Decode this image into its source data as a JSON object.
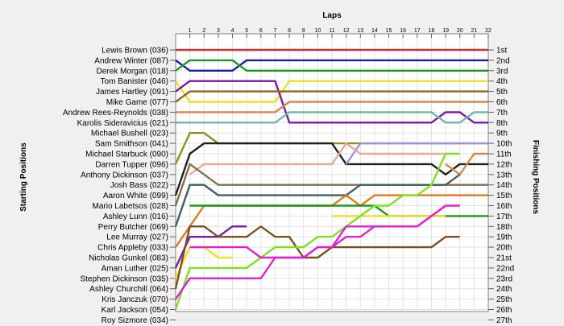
{
  "chart_data": {
    "type": "line",
    "title": "Laps",
    "xlabel": "Laps",
    "ylabel_left": "Starting Positions",
    "ylabel_right": "Finishing Positions",
    "laps": [
      "1",
      "2",
      "3",
      "4",
      "5",
      "6",
      "7",
      "8",
      "9",
      "10",
      "11",
      "12",
      "13",
      "14",
      "15",
      "16",
      "17",
      "18",
      "19",
      "20",
      "21",
      "22"
    ],
    "xlim": [
      0,
      22
    ],
    "ylim": [
      1,
      27
    ],
    "grid": true,
    "drivers": [
      "Lewis Brown (036)",
      "Andrew Winter (087)",
      "Derek Morgan (018)",
      "Tom Banister (046)",
      "James Hartley (091)",
      "Mike Game (077)",
      "Andrew Rees-Reynolds (038)",
      "Karolis Sideravicius (021)",
      "Michael Bushell (023)",
      "Sam Smithson (041)",
      "Michael Starbuck (090)",
      "Darren Tupper (096)",
      "Anthony Dickinson (037)",
      "Josh Bass (022)",
      "Aaron White (099)",
      "Mario Labetsos (028)",
      "Ashley Lunn (016)",
      "Perry Butcher (069)",
      "Lee Murray (027)",
      "Chris Appleby (033)",
      "Nicholas Gunkel (083)",
      "Aman Luther (025)",
      "Stephen Dickinson (035)",
      "Ashley Churchill (064)",
      "Kris Janczuk (070)",
      "Karl Jackson (054)",
      "Roy Sizmore (034)"
    ],
    "finishing_positions": [
      "1st",
      "2nd",
      "3rd",
      "4th",
      "5th",
      "6th",
      "7th",
      "8th",
      "9th",
      "10th",
      "11th",
      "12th",
      "13th",
      "14th",
      "15th",
      "16th",
      "17th",
      "18th",
      "19th",
      "20th",
      "21st",
      "22nd",
      "23rd",
      "24th",
      "25th",
      "26th",
      "27th"
    ],
    "series": [
      {
        "color": "#d03030",
        "values": [
          1,
          1,
          1,
          1,
          1,
          1,
          1,
          1,
          1,
          1,
          1,
          1,
          1,
          1,
          1,
          1,
          1,
          1,
          1,
          1,
          1,
          1,
          1
        ]
      },
      {
        "color": "#1a1ab0",
        "values": [
          2,
          3,
          3,
          3,
          3,
          2,
          2,
          2,
          2,
          2,
          2,
          2,
          2,
          2,
          2,
          2,
          2,
          2,
          2,
          2,
          2,
          2,
          2
        ]
      },
      {
        "color": "#1a9a1a",
        "values": [
          3,
          2,
          2,
          2,
          2,
          3,
          3,
          3,
          3,
          3,
          3,
          3,
          3,
          3,
          3,
          3,
          3,
          3,
          3,
          3,
          3,
          3,
          3
        ]
      },
      {
        "color": "#f0e020",
        "values": [
          4,
          6,
          6,
          6,
          6,
          6,
          6,
          6,
          4,
          4,
          4,
          4,
          4,
          4,
          4,
          4,
          4,
          4,
          4,
          4,
          4,
          4,
          4
        ]
      },
      {
        "color": "#7a1aa0",
        "values": [
          5,
          4,
          4,
          4,
          4,
          4,
          4,
          4,
          8,
          8,
          8,
          8,
          8,
          8,
          8,
          8,
          8,
          8,
          8,
          7,
          7,
          8,
          8
        ]
      },
      {
        "color": "#8a6a20",
        "values": [
          6,
          5,
          5,
          5,
          5,
          5,
          5,
          5,
          5,
          5,
          5,
          5,
          5,
          5,
          5,
          5,
          5,
          5,
          5,
          5,
          5,
          5,
          5
        ]
      },
      {
        "color": "#d08a50",
        "values": [
          7,
          7,
          7,
          7,
          7,
          7,
          7,
          7,
          6,
          6,
          6,
          6,
          6,
          6,
          6,
          6,
          6,
          6,
          6,
          6,
          6,
          6,
          6
        ]
      },
      {
        "color": "#70b8a8",
        "values": [
          8,
          8,
          8,
          8,
          8,
          8,
          8,
          8,
          7,
          7,
          7,
          7,
          7,
          7,
          7,
          7,
          7,
          7,
          7,
          8,
          8,
          7,
          7
        ]
      },
      {
        "color": "#909020",
        "values": [
          12,
          9,
          9,
          10,
          10,
          10,
          10,
          10,
          10,
          10,
          10,
          10,
          10,
          10,
          10,
          10,
          10,
          10,
          10,
          10,
          10,
          10,
          10
        ]
      },
      {
        "color": "#202020",
        "values": [
          15,
          11,
          10,
          10,
          10,
          10,
          10,
          10,
          10,
          10,
          10,
          10,
          12,
          12,
          12,
          12,
          12,
          12,
          12,
          13,
          12,
          12,
          12
        ]
      },
      {
        "color": "#a890d8",
        "values": [
          null,
          null,
          null,
          null,
          null,
          null,
          null,
          null,
          null,
          null,
          null,
          null,
          12,
          10,
          10,
          10,
          10,
          10,
          10,
          10,
          10,
          10,
          10
        ]
      },
      {
        "color": "#e8a898",
        "values": [
          null,
          13,
          12,
          12,
          12,
          12,
          12,
          12,
          12,
          12,
          12,
          12,
          10,
          11,
          11,
          11,
          11,
          11,
          11,
          11,
          null,
          null,
          null
        ]
      },
      {
        "color": "#d08a50",
        "values": [
          null,
          null,
          null,
          null,
          null,
          null,
          null,
          null,
          null,
          null,
          null,
          null,
          null,
          null,
          null,
          null,
          null,
          null,
          null,
          12,
          13,
          11,
          11
        ]
      },
      {
        "color": "#807050",
        "values": [
          16,
          12,
          13,
          14,
          14,
          14,
          14,
          14,
          14,
          14,
          14,
          14,
          14,
          14,
          14,
          14,
          14,
          14,
          14,
          14,
          14,
          14,
          14
        ]
      },
      {
        "color": "#406060",
        "values": [
          18,
          14,
          14,
          15,
          15,
          15,
          15,
          15,
          15,
          15,
          15,
          15,
          15,
          14,
          14,
          14,
          14,
          14,
          14,
          14,
          13,
          null,
          null
        ]
      },
      {
        "color": "#e07a20",
        "values": [
          20,
          18,
          16,
          16,
          16,
          16,
          16,
          16,
          16,
          16,
          16,
          16,
          15,
          16,
          15,
          15,
          15,
          15,
          15,
          15,
          15,
          15,
          15
        ]
      },
      {
        "color": "#1a9a1a",
        "values": [
          null,
          16,
          16,
          16,
          16,
          16,
          16,
          16,
          16,
          16,
          16,
          16,
          16,
          16,
          16,
          17,
          17,
          17,
          17,
          17,
          17,
          17,
          17
        ]
      },
      {
        "color": "#f0e020",
        "values": [
          23,
          20,
          20,
          21,
          21,
          null,
          null,
          null,
          null,
          null,
          null,
          null,
          null,
          null,
          null,
          null,
          null,
          null,
          null,
          null,
          null,
          null,
          null
        ]
      },
      {
        "color": "#f0e020",
        "values": [
          null,
          null,
          null,
          null,
          null,
          null,
          null,
          null,
          null,
          null,
          null,
          17,
          17,
          17,
          17,
          17,
          17,
          17,
          17,
          17,
          null,
          null,
          null
        ]
      },
      {
        "color": "#7a1aa0",
        "values": [
          22,
          19,
          19,
          19,
          18,
          18,
          null,
          null,
          null,
          null,
          null,
          null,
          null,
          null,
          null,
          null,
          null,
          null,
          null,
          null,
          null,
          null,
          null
        ]
      },
      {
        "color": "#7a5020",
        "values": [
          24,
          18,
          18,
          19,
          19,
          19,
          18,
          19,
          19,
          21,
          21,
          20,
          20,
          20,
          20,
          20,
          20,
          20,
          20,
          19,
          19,
          null,
          null
        ]
      },
      {
        "color": "#80e020",
        "values": [
          26,
          22,
          22,
          22,
          22,
          22,
          21,
          20,
          20,
          20,
          19,
          19,
          18,
          17,
          16,
          16,
          15,
          15,
          14,
          11,
          11,
          null,
          null
        ]
      },
      {
        "color": "#e020d0",
        "values": [
          25,
          23,
          23,
          23,
          23,
          23,
          23,
          21,
          21,
          21,
          20,
          20,
          19,
          19,
          18,
          18,
          18,
          18,
          17,
          16,
          16,
          null,
          null
        ]
      },
      {
        "color": "#e020d0",
        "values": [
          null,
          20,
          20,
          20,
          20,
          20,
          21,
          21,
          21,
          21,
          20,
          20,
          18,
          18,
          18,
          18,
          18,
          18,
          17,
          16,
          null,
          null,
          null
        ]
      }
    ]
  }
}
